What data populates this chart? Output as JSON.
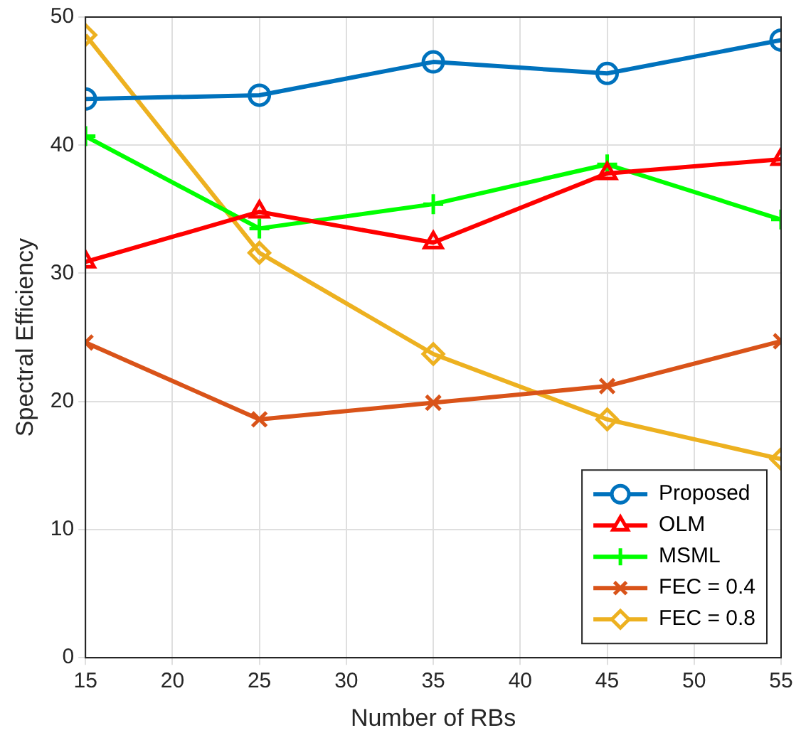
{
  "chart_data": {
    "type": "line",
    "xlabel": "Number of RBs",
    "ylabel": "Spectral Efficiency",
    "x": [
      15,
      25,
      35,
      45,
      55
    ],
    "xlim": [
      15,
      55
    ],
    "xticks": [
      15,
      20,
      25,
      30,
      35,
      40,
      45,
      50,
      55
    ],
    "ylim": [
      0,
      50
    ],
    "yticks": [
      0,
      10,
      20,
      30,
      40,
      50
    ],
    "grid": true,
    "legend": "bottom right",
    "line_style": "solid",
    "series": [
      {
        "name": "Proposed",
        "color": "#0072bd",
        "marker": "circle",
        "values": [
          43.6,
          43.9,
          46.5,
          45.6,
          48.2
        ]
      },
      {
        "name": "OLM",
        "color": "#ff0000",
        "marker": "triangle",
        "values": [
          30.9,
          34.8,
          32.4,
          37.8,
          38.9
        ]
      },
      {
        "name": "MSML",
        "color": "#00ff00",
        "marker": "plus",
        "values": [
          40.7,
          33.5,
          35.4,
          38.5,
          34.2
        ]
      },
      {
        "name": "FEC = 0.4",
        "color": "#d95319",
        "marker": "cross",
        "values": [
          24.6,
          18.6,
          19.9,
          21.2,
          24.7
        ]
      },
      {
        "name": "FEC = 0.8",
        "color": "#edb120",
        "marker": "diamond",
        "values": [
          48.6,
          31.6,
          23.7,
          18.6,
          15.5
        ]
      }
    ]
  }
}
